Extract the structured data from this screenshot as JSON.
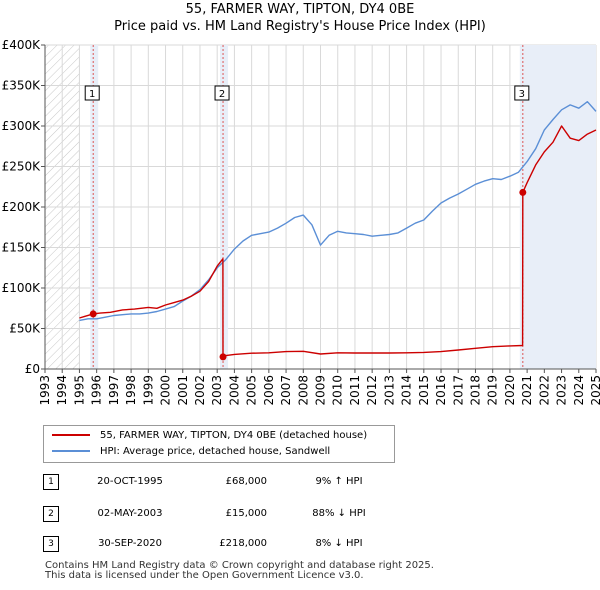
{
  "title": "55, FARMER WAY, TIPTON, DY4 0BE",
  "subtitle": "Price paid vs. HM Land Registry's House Price Index (HPI)",
  "colors": {
    "property": "#cc0000",
    "hpi": "#5b8fd6",
    "shade": "#e8eef8",
    "hatch": "#cccccc"
  },
  "chart_data": {
    "type": "line",
    "ylim": [
      0,
      400000
    ],
    "xlim": [
      1993,
      2025
    ],
    "ytick_values": [
      0,
      50000,
      100000,
      150000,
      200000,
      250000,
      300000,
      350000,
      400000
    ],
    "ytick_labels": [
      "£0",
      "£50K",
      "£100K",
      "£150K",
      "£200K",
      "£250K",
      "£300K",
      "£350K",
      "£400K"
    ],
    "xtick_labels": [
      "1993",
      "1994",
      "1995",
      "1996",
      "1997",
      "1998",
      "1999",
      "2000",
      "2001",
      "2002",
      "2003",
      "2004",
      "2005",
      "2006",
      "2007",
      "2008",
      "2009",
      "2010",
      "2011",
      "2012",
      "2013",
      "2014",
      "2015",
      "2016",
      "2017",
      "2018",
      "2019",
      "2020",
      "2021",
      "2022",
      "2023",
      "2024",
      "2025"
    ],
    "hatch_until": 1995.0,
    "series": [
      {
        "name": "HPI: Average price, detached house, Sandwell",
        "x": [
          1995.0,
          1995.5,
          1996.0,
          1996.5,
          1997.0,
          1997.5,
          1998.0,
          1998.5,
          1999.0,
          1999.5,
          2000.0,
          2000.5,
          2001.0,
          2001.5,
          2002.0,
          2002.5,
          2003.0,
          2003.5,
          2004.0,
          2004.5,
          2005.0,
          2005.5,
          2006.0,
          2006.5,
          2007.0,
          2007.5,
          2008.0,
          2008.5,
          2009.0,
          2009.5,
          2010.0,
          2010.5,
          2011.0,
          2011.5,
          2012.0,
          2012.5,
          2013.0,
          2013.5,
          2014.0,
          2014.5,
          2015.0,
          2015.5,
          2016.0,
          2016.5,
          2017.0,
          2017.5,
          2018.0,
          2018.5,
          2019.0,
          2019.5,
          2020.0,
          2020.5,
          2021.0,
          2021.5,
          2022.0,
          2022.5,
          2023.0,
          2023.5,
          2024.0,
          2024.5,
          2025.0
        ],
        "values": [
          60000,
          62000,
          62000,
          64000,
          66000,
          67000,
          68000,
          68000,
          69000,
          71000,
          74000,
          77000,
          84000,
          90000,
          98000,
          110000,
          125000,
          135000,
          148000,
          158000,
          165000,
          167000,
          169000,
          174000,
          180000,
          187000,
          190000,
          178000,
          153000,
          165000,
          170000,
          168000,
          167000,
          166000,
          164000,
          165000,
          166000,
          168000,
          174000,
          180000,
          184000,
          195000,
          205000,
          211000,
          216000,
          222000,
          228000,
          232000,
          235000,
          234000,
          238000,
          243000,
          256000,
          272000,
          295000,
          308000,
          320000,
          326000,
          322000,
          330000,
          318000
        ]
      },
      {
        "name": "55, FARMER WAY, TIPTON, DY4 0BE (detached house)",
        "x": [
          1995.0,
          1995.3,
          1995.8,
          1996.2,
          1996.8,
          1997.5,
          1998.2,
          1999.0,
          1999.5,
          2000.0,
          2000.5,
          2001.0,
          2001.5,
          2002.0,
          2002.5,
          2003.0,
          2003.33,
          2003.34,
          2003.5,
          2004.0,
          2005.0,
          2006.0,
          2007.0,
          2008.0,
          2009.0,
          2010.0,
          2011.0,
          2012.0,
          2013.0,
          2014.0,
          2015.0,
          2016.0,
          2017.0,
          2018.0,
          2019.0,
          2020.0,
          2020.74,
          2020.75,
          2021.0,
          2021.5,
          2022.0,
          2022.5,
          2023.0,
          2023.5,
          2024.0,
          2024.5,
          2025.0
        ],
        "values": [
          63000,
          65000,
          68000,
          69000,
          70000,
          73000,
          74000,
          76000,
          75000,
          79000,
          82000,
          85000,
          90000,
          96000,
          108000,
          127000,
          136000,
          15000,
          16500,
          18000,
          19500,
          20000,
          21500,
          21800,
          18500,
          20000,
          19800,
          19800,
          19800,
          20000,
          20500,
          21500,
          23500,
          25500,
          27500,
          28500,
          29000,
          218000,
          230000,
          252000,
          268000,
          280000,
          300000,
          285000,
          282000,
          290000,
          295000
        ]
      }
    ],
    "transactions": [
      {
        "marker": "1",
        "year": 1995.8,
        "price": 68000,
        "date": "20-OCT-1995",
        "price_label": "£68,000",
        "hpi_label": "9% ↑ HPI"
      },
      {
        "marker": "2",
        "year": 2003.34,
        "price": 15000,
        "date": "02-MAY-2003",
        "price_label": "£15,000",
        "hpi_label": "88% ↓ HPI"
      },
      {
        "marker": "3",
        "year": 2020.75,
        "price": 218000,
        "date": "30-SEP-2020",
        "price_label": "£218,000",
        "hpi_label": "8% ↓ HPI"
      }
    ]
  },
  "legend": {
    "property": "55, FARMER WAY, TIPTON, DY4 0BE (detached house)",
    "hpi": "HPI: Average price, detached house, Sandwell"
  },
  "footer": {
    "line1": "Contains HM Land Registry data © Crown copyright and database right 2025.",
    "line2": "This data is licensed under the Open Government Licence v3.0."
  }
}
